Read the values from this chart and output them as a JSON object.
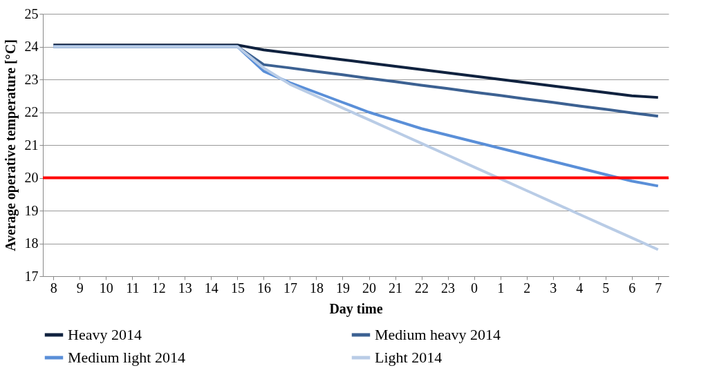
{
  "chart_data": {
    "type": "line",
    "xlabel": "Day time",
    "ylabel": "Average operative temperature [°C]",
    "categories": [
      "8",
      "9",
      "10",
      "11",
      "12",
      "13",
      "14",
      "15",
      "16",
      "17",
      "18",
      "19",
      "20",
      "21",
      "22",
      "23",
      "0",
      "1",
      "2",
      "3",
      "4",
      "5",
      "6",
      "7"
    ],
    "series": [
      {
        "name": "Heavy 2014",
        "color": "#10223f",
        "values": [
          24.05,
          24.05,
          24.05,
          24.05,
          24.05,
          24.05,
          24.05,
          24.05,
          23.9,
          23.8,
          23.7,
          23.6,
          23.5,
          23.4,
          23.3,
          23.2,
          23.1,
          23.0,
          22.9,
          22.8,
          22.7,
          22.6,
          22.5,
          22.45
        ]
      },
      {
        "name": "Medium heavy 2014",
        "color": "#3c6192",
        "values": [
          24.0,
          24.0,
          24.0,
          24.0,
          24.0,
          24.0,
          24.0,
          24.0,
          23.45,
          23.35,
          23.24,
          23.14,
          23.03,
          22.93,
          22.82,
          22.72,
          22.61,
          22.51,
          22.4,
          22.3,
          22.19,
          22.09,
          21.98,
          21.88
        ]
      },
      {
        "name": "Medium light 2014",
        "color": "#5a8fd8",
        "values": [
          24.0,
          24.0,
          24.0,
          24.0,
          24.0,
          24.0,
          24.0,
          24.0,
          23.25,
          22.9,
          22.6,
          22.3,
          22.0,
          21.75,
          21.5,
          21.3,
          21.1,
          20.9,
          20.7,
          20.5,
          20.3,
          20.1,
          19.9,
          19.75
        ]
      },
      {
        "name": "Light 2014",
        "color": "#b9cce6",
        "values": [
          24.0,
          24.0,
          24.0,
          24.0,
          24.0,
          24.0,
          24.0,
          24.0,
          23.35,
          22.85,
          22.49,
          22.13,
          21.77,
          21.41,
          21.05,
          20.69,
          20.33,
          19.97,
          19.61,
          19.25,
          18.89,
          18.53,
          18.17,
          17.81
        ]
      }
    ],
    "ylim": [
      17,
      25
    ],
    "yticks": [
      17,
      18,
      19,
      20,
      21,
      22,
      23,
      24,
      25
    ],
    "grid": "y",
    "legend": "bottom",
    "ref_lines": [
      {
        "axis": "y",
        "value": 20,
        "color": "#ff0000"
      }
    ]
  }
}
